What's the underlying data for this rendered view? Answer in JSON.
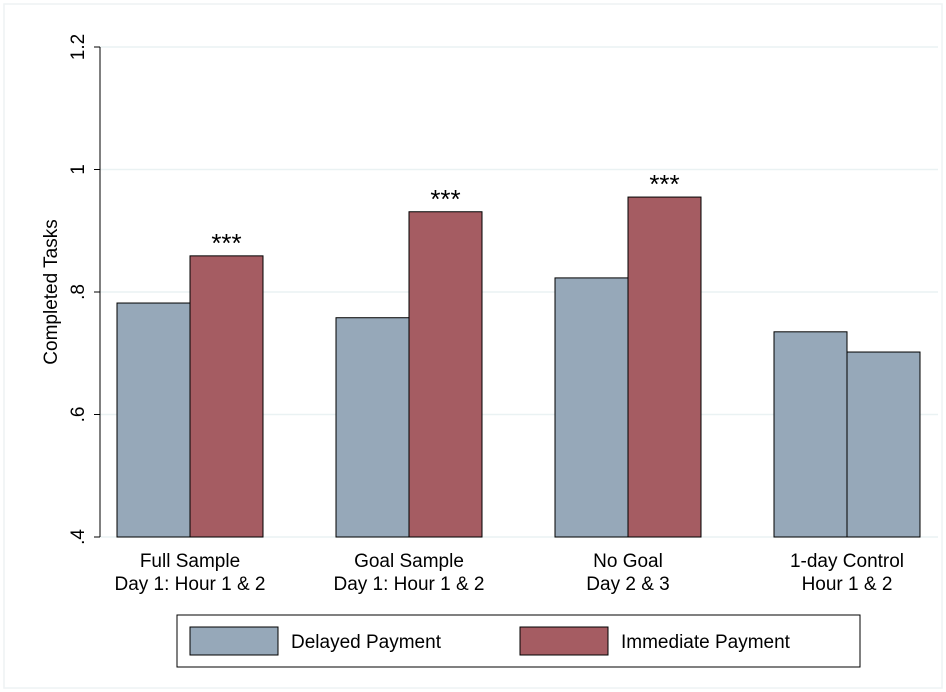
{
  "chart_data": {
    "type": "bar",
    "y_label": "Completed Tasks",
    "categories": [
      [
        "Full Sample",
        "Day 1: Hour 1 & 2"
      ],
      [
        "Goal Sample",
        "Day 1: Hour 1 & 2"
      ],
      [
        "No Goal",
        "Day 2 & 3"
      ],
      [
        "1-day Control",
        "Hour 1 & 2"
      ]
    ],
    "series": [
      {
        "name": "Delayed Payment",
        "color": "#96a8b9",
        "values": [
          0.782,
          0.758,
          0.823,
          0.735
        ]
      },
      {
        "name": "Immediate Payment",
        "color": "#a55c62",
        "values": [
          0.859,
          0.931,
          0.955,
          0.702
        ],
        "bar_colors": [
          "#a55c62",
          "#a55c62",
          "#a55c62",
          "#96a8b9"
        ]
      }
    ],
    "annotations": [
      "***",
      "***",
      "***"
    ],
    "ylim": [
      0.4,
      1.2
    ],
    "yticks": [
      {
        "value": 0.4,
        "label": ".4"
      },
      {
        "value": 0.6,
        "label": ".6"
      },
      {
        "value": 0.8,
        "label": ".8"
      },
      1,
      1.2
    ],
    "grid": true,
    "legend": "bottom"
  }
}
